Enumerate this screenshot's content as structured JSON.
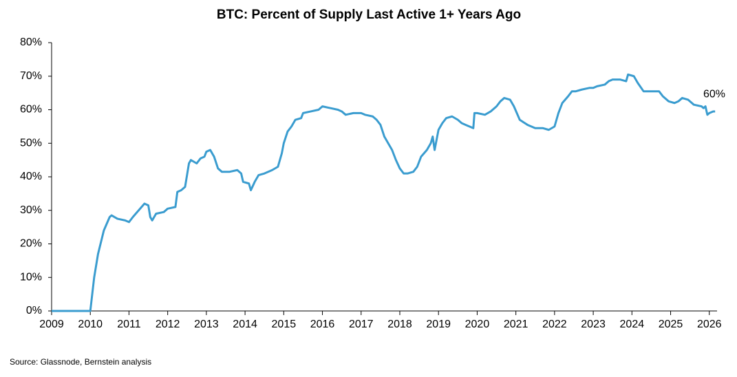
{
  "chart_data": {
    "type": "line",
    "title": "BTC: Percent of Supply Last Active 1+ Years Ago",
    "source": "Source: Glassnode, Bernstein analysis",
    "xlim": [
      2009,
      2026.2
    ],
    "xticks": [
      2009,
      2010,
      2011,
      2012,
      2013,
      2014,
      2015,
      2016,
      2017,
      2018,
      2019,
      2020,
      2021,
      2022,
      2023,
      2024,
      2025,
      2026
    ],
    "ylim": [
      0,
      80
    ],
    "yticks": [
      {
        "value": 0,
        "label": "0%"
      },
      {
        "value": 10,
        "label": "10%"
      },
      {
        "value": 20,
        "label": "20%"
      },
      {
        "value": 30,
        "label": "30%"
      },
      {
        "value": 40,
        "label": "40%"
      },
      {
        "value": 50,
        "label": "50%"
      },
      {
        "value": 60,
        "label": "60%"
      },
      {
        "value": 70,
        "label": "70%"
      },
      {
        "value": 80,
        "label": "80%"
      }
    ],
    "grid": false,
    "annotations": [
      {
        "label": "60%",
        "value": 60
      }
    ],
    "series": [
      {
        "color": "#3a9ccf",
        "x": [
          2009.0,
          2009.5,
          2010.0,
          2010.1,
          2010.2,
          2010.35,
          2010.5,
          2010.55,
          2010.7,
          2010.9,
          2011.0,
          2011.1,
          2011.25,
          2011.4,
          2011.5,
          2011.55,
          2011.6,
          2011.7,
          2011.9,
          2012.0,
          2012.2,
          2012.25,
          2012.35,
          2012.45,
          2012.55,
          2012.6,
          2012.75,
          2012.85,
          2012.95,
          2013.0,
          2013.1,
          2013.2,
          2013.3,
          2013.4,
          2013.6,
          2013.8,
          2013.9,
          2013.95,
          2014.1,
          2014.15,
          2014.25,
          2014.35,
          2014.5,
          2014.7,
          2014.85,
          2014.95,
          2015.0,
          2015.1,
          2015.2,
          2015.3,
          2015.45,
          2015.5,
          2015.7,
          2015.9,
          2016.0,
          2016.2,
          2016.4,
          2016.5,
          2016.6,
          2016.8,
          2017.0,
          2017.1,
          2017.3,
          2017.4,
          2017.5,
          2017.6,
          2017.7,
          2017.8,
          2017.9,
          2018.0,
          2018.1,
          2018.2,
          2018.35,
          2018.45,
          2018.55,
          2018.7,
          2018.8,
          2018.85,
          2018.9,
          2018.95,
          2019.0,
          2019.1,
          2019.2,
          2019.35,
          2019.5,
          2019.6,
          2019.7,
          2019.8,
          2019.9,
          2019.93,
          2020.0,
          2020.2,
          2020.35,
          2020.5,
          2020.6,
          2020.7,
          2020.85,
          2020.95,
          2021.1,
          2021.3,
          2021.5,
          2021.7,
          2021.85,
          2022.0,
          2022.1,
          2022.2,
          2022.35,
          2022.45,
          2022.55,
          2022.7,
          2022.9,
          2023.0,
          2023.1,
          2023.3,
          2023.4,
          2023.5,
          2023.7,
          2023.85,
          2023.9,
          2024.05,
          2024.15,
          2024.3,
          2024.5,
          2024.7,
          2024.8,
          2024.95,
          2025.1,
          2025.2,
          2025.3,
          2025.45,
          2025.6,
          2025.8,
          2025.85,
          2025.9,
          2025.95,
          2026.0,
          2026.1,
          2026.15
        ],
        "values": [
          0,
          0,
          0,
          10,
          17,
          24,
          28,
          28.5,
          27.5,
          27,
          26.5,
          28,
          30,
          32,
          31.5,
          28,
          27,
          29,
          29.5,
          30.5,
          31,
          35.5,
          36,
          37,
          44,
          45,
          44,
          45.5,
          46,
          47.5,
          48,
          46,
          42.5,
          41.5,
          41.5,
          42,
          41,
          38.5,
          38,
          36,
          38.5,
          40.5,
          41,
          42,
          43,
          47,
          50,
          53.5,
          55,
          57,
          57.5,
          59,
          59.5,
          60,
          61,
          60.5,
          60,
          59.5,
          58.5,
          59,
          59,
          58.5,
          58,
          57,
          55.5,
          52,
          50,
          48,
          45,
          42.5,
          41,
          41,
          41.5,
          43,
          46,
          48,
          50,
          52,
          48,
          51,
          54,
          56,
          57.5,
          58,
          57,
          56,
          55.5,
          55,
          54.5,
          59,
          59,
          58.5,
          59.5,
          61,
          62.5,
          63.5,
          63,
          61,
          57,
          55.5,
          54.5,
          54.5,
          54,
          55,
          59,
          62,
          64,
          65.5,
          65.5,
          66,
          66.5,
          66.5,
          67,
          67.5,
          68.5,
          69,
          69,
          68.5,
          70.5,
          70,
          68,
          65.5,
          65.5,
          65.5,
          64,
          62.5,
          62,
          62.5,
          63.5,
          63,
          61.5,
          61,
          60.5,
          61,
          58.5,
          59,
          59.5,
          59.5
        ]
      }
    ]
  }
}
